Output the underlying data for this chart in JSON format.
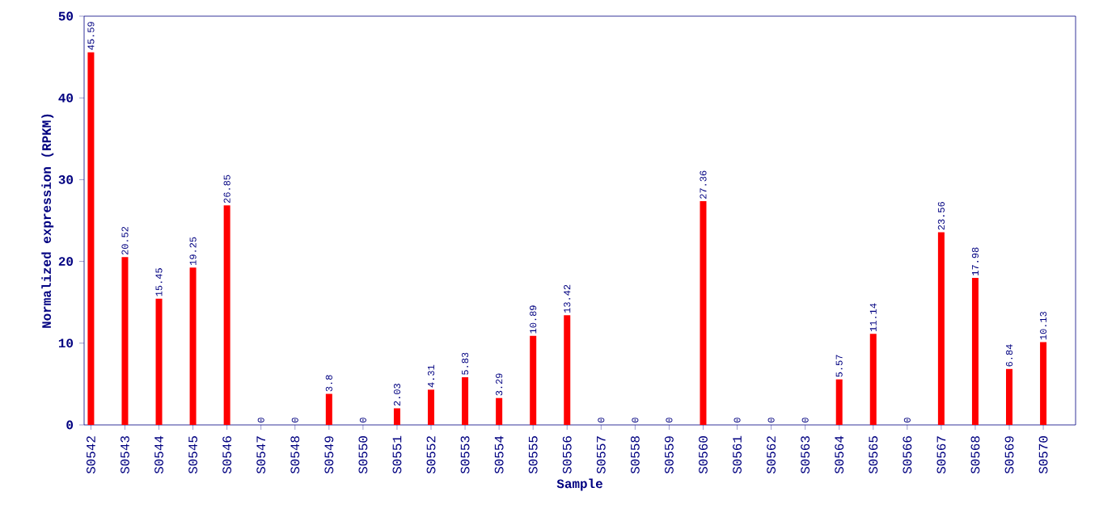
{
  "chart_data": {
    "type": "bar",
    "xlabel": "Sample",
    "ylabel": "Normalized expression (RPKM)",
    "categories": [
      "S0542",
      "S0543",
      "S0544",
      "S0545",
      "S0546",
      "S0547",
      "S0548",
      "S0549",
      "S0550",
      "S0551",
      "S0552",
      "S0553",
      "S0554",
      "S0555",
      "S0556",
      "S0557",
      "S0558",
      "S0559",
      "S0560",
      "S0561",
      "S0562",
      "S0563",
      "S0564",
      "S0565",
      "S0566",
      "S0567",
      "S0568",
      "S0569",
      "S0570"
    ],
    "values": [
      45.59,
      20.52,
      15.45,
      19.25,
      26.85,
      0,
      0,
      3.8,
      0,
      2.03,
      4.31,
      5.83,
      3.29,
      10.89,
      13.42,
      0,
      0,
      0,
      27.36,
      0,
      0,
      0,
      5.57,
      11.14,
      0,
      23.56,
      17.98,
      6.84,
      10.13
    ],
    "value_labels": [
      "45.59",
      "20.52",
      "15.45",
      "19.25",
      "26.85",
      "0",
      "0",
      "3.8",
      "0",
      "2.03",
      "4.31",
      "5.83",
      "3.29",
      "10.89",
      "13.42",
      "0",
      "0",
      "0",
      "27.36",
      "0",
      "0",
      "0",
      "5.57",
      "11.14",
      "0",
      "23.56",
      "17.98",
      "6.84",
      "10.13"
    ],
    "color": "#ff0000",
    "ylim": [
      0,
      50
    ],
    "yticks": [
      0,
      10,
      20,
      30,
      40,
      50
    ],
    "grid": false
  }
}
